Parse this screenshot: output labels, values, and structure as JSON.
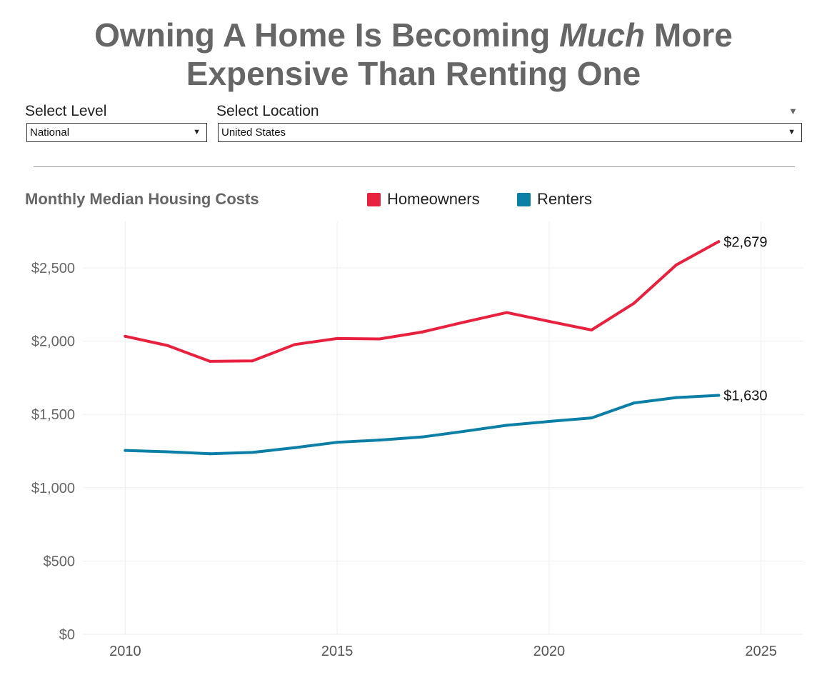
{
  "header": {
    "title_part1": "Owning A Home Is Becoming ",
    "title_emph": "Much",
    "title_part2": " More",
    "title_line2": "Expensive Than Renting One"
  },
  "controls": {
    "level_label": "Select Level",
    "level_value": "National",
    "location_label": "Select Location",
    "location_value": "United States"
  },
  "colors": {
    "homeowners": "#e8213f",
    "renters": "#0b7fa6",
    "grid": "#eeeeee"
  },
  "chart_data": {
    "type": "line",
    "title": "Monthly Median Housing Costs",
    "xlabel": "",
    "ylabel": "",
    "xlim": [
      2009,
      2026
    ],
    "ylim": [
      0,
      2700
    ],
    "x_ticks": [
      2010,
      2015,
      2020,
      2025
    ],
    "y_ticks": [
      0,
      500,
      1000,
      1500,
      2000,
      2500
    ],
    "y_tick_labels": [
      "$0",
      "$500",
      "$1,000",
      "$1,500",
      "$2,000",
      "$2,500"
    ],
    "grid": true,
    "legend": "top",
    "series": [
      {
        "name": "Homeowners",
        "color": "#e8213f",
        "x": [
          2010,
          2011,
          2012,
          2013,
          2014,
          2015,
          2016,
          2017,
          2018,
          2019,
          2020,
          2021,
          2022,
          2023,
          2024
        ],
        "values": [
          2033,
          1970,
          1862,
          1865,
          1977,
          2018,
          2015,
          2062,
          2130,
          2195,
          2135,
          2076,
          2258,
          2520,
          2679
        ],
        "end_label": "$2,679"
      },
      {
        "name": "Renters",
        "color": "#0b7fa6",
        "x": [
          2010,
          2011,
          2012,
          2013,
          2014,
          2015,
          2016,
          2017,
          2018,
          2019,
          2020,
          2021,
          2022,
          2023,
          2024
        ],
        "values": [
          1254,
          1245,
          1232,
          1241,
          1273,
          1310,
          1325,
          1346,
          1385,
          1426,
          1452,
          1476,
          1578,
          1615,
          1630
        ],
        "end_label": "$1,630"
      }
    ]
  }
}
